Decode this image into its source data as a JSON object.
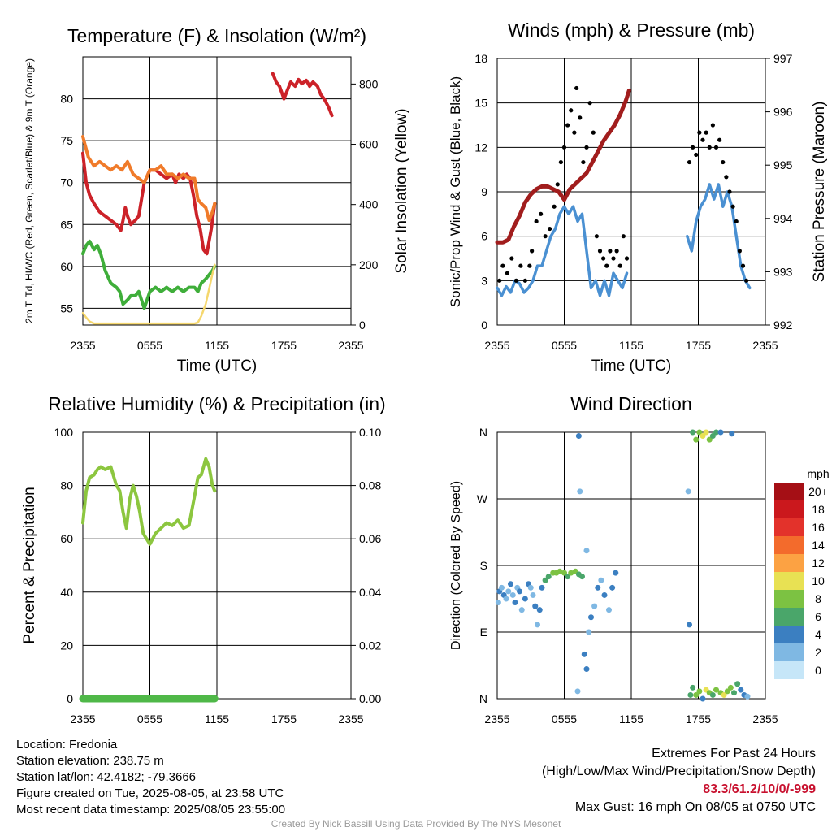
{
  "time_ticks": [
    "2355",
    "0555",
    "1155",
    "1755",
    "2355"
  ],
  "chart_data": [
    {
      "id": "temp",
      "type": "line",
      "title": "Temperature (F) & Insolation (W/m²)",
      "xlabel": "Time (UTC)",
      "ylabel": "2m T, Td, HI/WC (Red, Green, Scarlet/Blue) & 9m T (Orange)",
      "ylabel_right": "Solar Insolation (Yellow)",
      "x_unit": "hours since 2355 UTC",
      "xlim": [
        0,
        24
      ],
      "ylim": [
        53,
        85
      ],
      "yticks": [
        55,
        60,
        65,
        70,
        75,
        80
      ],
      "ylim_right": [
        0,
        890
      ],
      "yticks_right": [
        0,
        200,
        400,
        600,
        800
      ],
      "series": [
        {
          "name": "2m T",
          "color": "#cc2229",
          "axis": "left",
          "x": [
            0,
            0.3,
            0.6,
            1,
            1.5,
            2,
            2.5,
            3,
            3.4,
            3.6,
            3.8,
            4,
            4.3,
            4.7,
            5,
            5.5,
            6,
            6.5,
            7,
            7.5,
            8,
            8.3,
            8.6,
            9,
            9.3,
            9.6,
            9.9,
            10.2,
            10.5,
            10.8,
            11.1,
            11.5,
            11.8
          ],
          "y": [
            73.5,
            70,
            68.5,
            67.5,
            66.5,
            66,
            65.5,
            65,
            64.3,
            65.5,
            67,
            66,
            65,
            65.5,
            66,
            70,
            71.5,
            71.5,
            71,
            70.5,
            71,
            70,
            71,
            70.5,
            71,
            70.5,
            68.5,
            66,
            64.5,
            62,
            61.5,
            64.5,
            67.5
          ]
        },
        {
          "name": "2m T (evening)",
          "color": "#cc2229",
          "axis": "left",
          "x": [
            17,
            17.3,
            17.6,
            18,
            18.3,
            18.6,
            19,
            19.3,
            19.6,
            20,
            20.3,
            20.6,
            21,
            21.3,
            21.6,
            22,
            22.3
          ],
          "y": [
            83,
            82,
            81.5,
            80,
            81,
            82,
            81.5,
            82.3,
            81.8,
            82.2,
            81.5,
            82,
            81.5,
            80.5,
            80,
            79,
            78
          ]
        },
        {
          "name": "9m T",
          "color": "#f07b2a",
          "axis": "left",
          "x": [
            0,
            0.5,
            1,
            1.5,
            2,
            2.5,
            3,
            3.5,
            4,
            4.5,
            5,
            5.5,
            6,
            6.5,
            7,
            7.5,
            8,
            8.5,
            9,
            9.5,
            10,
            10.3,
            10.6,
            11,
            11.3,
            11.6,
            11.8
          ],
          "y": [
            75.5,
            73,
            72,
            72.5,
            72,
            71.5,
            72,
            71.5,
            72.5,
            71,
            70.5,
            70,
            71.5,
            71.5,
            72,
            71,
            71,
            70.5,
            71,
            70.5,
            70.5,
            68,
            67.5,
            67,
            65.5,
            66.5,
            67.5
          ]
        },
        {
          "name": "Td",
          "color": "#3fae3a",
          "axis": "left",
          "x": [
            0,
            0.3,
            0.6,
            1,
            1.3,
            1.6,
            2,
            2.5,
            3,
            3.3,
            3.6,
            4,
            4.3,
            4.7,
            5,
            5.5,
            6,
            6.5,
            7,
            7.5,
            8,
            8.5,
            9,
            9.5,
            10,
            10.3,
            10.6,
            11,
            11.3,
            11.6,
            11.8
          ],
          "y": [
            61.5,
            62.5,
            63,
            62,
            62.5,
            61.5,
            59.5,
            58,
            57.5,
            57,
            55.5,
            56,
            56.5,
            56.5,
            57,
            55,
            57,
            57.5,
            57,
            57.5,
            57,
            57.5,
            57,
            57.5,
            57.5,
            57,
            58,
            58.5,
            59,
            59.5,
            60
          ]
        },
        {
          "name": "Solar Insolation",
          "color": "#f5d76e",
          "axis": "right",
          "x": [
            0,
            0.3,
            0.6,
            1,
            2,
            4,
            6,
            8,
            10,
            10.3,
            10.6,
            11,
            11.3,
            11.6,
            11.8
          ],
          "y": [
            40,
            25,
            12,
            5,
            5,
            5,
            5,
            5,
            5,
            8,
            30,
            70,
            120,
            170,
            200
          ]
        }
      ]
    },
    {
      "id": "wind",
      "type": "line",
      "title": "Winds (mph) & Pressure (mb)",
      "xlabel": "Time (UTC)",
      "ylabel": "Sonic/Prop Wind & Gust (Blue, Black)",
      "ylabel_right": "Station Pressure (Maroon)",
      "x_unit": "hours since 2355 UTC",
      "xlim": [
        0,
        24
      ],
      "ylim": [
        0,
        18
      ],
      "yticks": [
        0,
        3,
        6,
        9,
        12,
        15,
        18
      ],
      "ylim_right": [
        992,
        997
      ],
      "yticks_right": [
        992,
        993,
        994,
        995,
        996,
        997
      ],
      "series": [
        {
          "name": "Station Pressure",
          "color": "#a11d1d",
          "axis": "right",
          "x": [
            0,
            0.5,
            1,
            1.5,
            2,
            2.5,
            3,
            3.5,
            4,
            4.5,
            5,
            5.5,
            6,
            6.5,
            7,
            7.5,
            8,
            8.5,
            9,
            9.5,
            10,
            10.5,
            11,
            11.5,
            11.8
          ],
          "y": [
            993.55,
            993.55,
            993.6,
            993.85,
            994.05,
            994.3,
            994.45,
            994.55,
            994.6,
            994.6,
            994.55,
            994.5,
            994.35,
            994.55,
            994.65,
            994.75,
            994.85,
            995.05,
            995.25,
            995.45,
            995.6,
            995.75,
            995.95,
            996.2,
            996.4
          ]
        },
        {
          "name": "Wind Speed",
          "color": "#4a90d2",
          "axis": "left",
          "x": [
            0,
            0.4,
            0.8,
            1.2,
            1.6,
            2,
            2.4,
            2.8,
            3.2,
            3.6,
            4,
            4.4,
            4.8,
            5.2,
            5.6,
            6,
            6.4,
            6.8,
            7.2,
            7.6,
            8,
            8.4,
            8.8,
            9.2,
            9.6,
            10,
            10.4,
            10.8,
            11.2,
            11.6
          ],
          "y": [
            2.5,
            2,
            2.6,
            2.2,
            3,
            2.8,
            2.2,
            2.5,
            3,
            4,
            4,
            5,
            6,
            6.5,
            7.5,
            8,
            7.5,
            8,
            7,
            7.5,
            5,
            2.5,
            3,
            2,
            3,
            2,
            3.5,
            3,
            2.5,
            3.5
          ]
        },
        {
          "name": "Wind Speed (evening)",
          "color": "#4a90d2",
          "axis": "left",
          "x": [
            17,
            17.4,
            17.8,
            18.2,
            18.6,
            19,
            19.4,
            19.8,
            20.2,
            20.6,
            21,
            21.4,
            21.8,
            22.2,
            22.6
          ],
          "y": [
            6,
            5,
            7,
            8,
            8.5,
            9.5,
            8.5,
            9.5,
            8,
            9,
            8,
            6,
            4,
            3,
            2.5
          ]
        },
        {
          "name": "Gust",
          "color": "#000000",
          "axis": "left",
          "type": "scatter",
          "x": [
            0.2,
            0.5,
            0.9,
            1.3,
            1.7,
            2.1,
            2.5,
            2.9,
            3.1,
            3.5,
            3.9,
            4.3,
            4.7,
            5.1,
            5.4,
            5.7,
            6,
            6.3,
            6.6,
            6.9,
            7.1,
            7.4,
            7.7,
            8,
            8.3,
            8.6,
            8.9,
            9.2,
            9.5,
            9.8,
            10.1,
            10.4,
            10.7,
            11,
            11.3,
            11.6,
            17.2,
            17.5,
            17.8,
            18.1,
            18.4,
            18.7,
            19,
            19.3,
            19.6,
            19.9,
            20.2,
            20.5,
            20.8,
            21.1,
            21.4,
            21.7,
            22,
            22.3
          ],
          "y": [
            3,
            4,
            3.5,
            4.5,
            3,
            4,
            3,
            4,
            5,
            7,
            7.5,
            6,
            6.5,
            8,
            9.5,
            11,
            12,
            13.5,
            14.5,
            13,
            16,
            14,
            11,
            12,
            15,
            13,
            6,
            5,
            4.5,
            4,
            5,
            4.5,
            5,
            4,
            6,
            4.5,
            11,
            12,
            11.5,
            13,
            12.5,
            13,
            12,
            13.5,
            12,
            12.5,
            11,
            10,
            9,
            8,
            7,
            5,
            4,
            3
          ]
        }
      ]
    },
    {
      "id": "rh",
      "type": "line",
      "title": "Relative Humidity (%) & Precipitation (in)",
      "xlabel": "",
      "ylabel": "Percent & Precipitation",
      "x_unit": "hours since 2355 UTC",
      "xlim": [
        0,
        24
      ],
      "ylim": [
        0,
        100
      ],
      "yticks": [
        0,
        20,
        40,
        60,
        80,
        100
      ],
      "ylim_right": [
        0,
        0.1
      ],
      "yticks_right": [
        "0.00",
        "0.02",
        "0.04",
        "0.06",
        "0.08",
        "0.10"
      ],
      "series": [
        {
          "name": "Relative Humidity",
          "color": "#8cc63f",
          "axis": "left",
          "x": [
            0,
            0.3,
            0.6,
            1,
            1.3,
            1.6,
            2,
            2.5,
            3,
            3.3,
            3.6,
            3.9,
            4.2,
            4.5,
            4.8,
            5.1,
            5.4,
            5.7,
            6,
            6.5,
            7,
            7.5,
            8,
            8.5,
            9,
            9.5,
            10,
            10.3,
            10.6,
            11,
            11.3,
            11.6,
            11.8
          ],
          "y": [
            66,
            78,
            83,
            84,
            86,
            87,
            86,
            87,
            80,
            78,
            70,
            64,
            75,
            80,
            76,
            70,
            62,
            60,
            58,
            62,
            64,
            66,
            65,
            67,
            64,
            65,
            76,
            83,
            84,
            90,
            87,
            80,
            78
          ]
        },
        {
          "name": "Precipitation",
          "color": "#4fb848",
          "axis": "right",
          "x": [
            0,
            11.8
          ],
          "y": [
            0,
            0
          ]
        }
      ]
    },
    {
      "id": "dir",
      "type": "scatter",
      "title": "Wind Direction",
      "xlabel": "",
      "ylabel": "Direction (Colored By Speed)",
      "x_unit": "hours since 2355 UTC",
      "xlim": [
        0,
        24
      ],
      "ylim": [
        0,
        360
      ],
      "ytick_labels": [
        "N",
        "E",
        "S",
        "W",
        "N"
      ],
      "yticks": [
        0,
        90,
        180,
        270,
        360
      ],
      "colorbar": {
        "title": "mph",
        "labels": [
          "20+",
          "18",
          "16",
          "14",
          "12",
          "10",
          "8",
          "6",
          "4",
          "2",
          "0"
        ],
        "colors": [
          "#a50f15",
          "#cb181d",
          "#e3322b",
          "#f36b2c",
          "#fca243",
          "#e8e153",
          "#7cc242",
          "#4aa66a",
          "#3b7fc1",
          "#7fb8e3",
          "#c6e6f8"
        ]
      },
      "points": [
        [
          0.1,
          130,
          2
        ],
        [
          0.2,
          145,
          3
        ],
        [
          0.4,
          150,
          2
        ],
        [
          0.6,
          140,
          3
        ],
        [
          0.8,
          135,
          2
        ],
        [
          1,
          145,
          2
        ],
        [
          1.2,
          155,
          3
        ],
        [
          1.4,
          140,
          2
        ],
        [
          1.6,
          130,
          3
        ],
        [
          1.8,
          150,
          2
        ],
        [
          2,
          145,
          3
        ],
        [
          2.2,
          120,
          2
        ],
        [
          2.5,
          135,
          4
        ],
        [
          2.8,
          155,
          3
        ],
        [
          3,
          150,
          2
        ],
        [
          3.2,
          140,
          2
        ],
        [
          3.4,
          125,
          3
        ],
        [
          3.6,
          100,
          2
        ],
        [
          3.8,
          120,
          3
        ],
        [
          4,
          150,
          4
        ],
        [
          4.3,
          160,
          5
        ],
        [
          4.6,
          165,
          6
        ],
        [
          5,
          170,
          7
        ],
        [
          5.3,
          170,
          8
        ],
        [
          5.6,
          172,
          8
        ],
        [
          6,
          170,
          7
        ],
        [
          6.3,
          165,
          6
        ],
        [
          6.6,
          170,
          8
        ],
        [
          7,
          172,
          7
        ],
        [
          7.3,
          168,
          6
        ],
        [
          7.6,
          165,
          5
        ],
        [
          7.8,
          60,
          4
        ],
        [
          8,
          40,
          3
        ],
        [
          8.2,
          90,
          2
        ],
        [
          8.4,
          110,
          3
        ],
        [
          8.7,
          125,
          2
        ],
        [
          9,
          150,
          3
        ],
        [
          9.3,
          160,
          2
        ],
        [
          9.6,
          140,
          3
        ],
        [
          10,
          120,
          2
        ],
        [
          10.3,
          150,
          3
        ],
        [
          10.6,
          170,
          4
        ],
        [
          7.2,
          10,
          2
        ],
        [
          7.3,
          355,
          3
        ],
        [
          7.4,
          280,
          2
        ],
        [
          8,
          200,
          1
        ],
        [
          17.1,
          280,
          2
        ],
        [
          17.2,
          100,
          4
        ],
        [
          17.3,
          5,
          5
        ],
        [
          17.5,
          360,
          6
        ],
        [
          17.8,
          350,
          8
        ],
        [
          18.1,
          360,
          7
        ],
        [
          18.4,
          355,
          9
        ],
        [
          18.7,
          360,
          10
        ],
        [
          19,
          350,
          8
        ],
        [
          19.3,
          355,
          6
        ],
        [
          19.6,
          360,
          5
        ],
        [
          20,
          360,
          4
        ],
        [
          21,
          358,
          3
        ],
        [
          17.5,
          15,
          6
        ],
        [
          17.8,
          5,
          8
        ],
        [
          18.1,
          10,
          7
        ],
        [
          18.4,
          0,
          4
        ],
        [
          18.7,
          12,
          9
        ],
        [
          19,
          8,
          8
        ],
        [
          19.3,
          5,
          6
        ],
        [
          19.6,
          12,
          8
        ],
        [
          20,
          8,
          7
        ],
        [
          20.3,
          5,
          9
        ],
        [
          20.6,
          10,
          8
        ],
        [
          20.9,
          15,
          7
        ],
        [
          21.2,
          8,
          6
        ],
        [
          21.5,
          20,
          5
        ],
        [
          21.8,
          12,
          4
        ],
        [
          22.1,
          5,
          3
        ],
        [
          22.4,
          3,
          2
        ]
      ]
    }
  ],
  "info": {
    "location": "Location: Fredonia",
    "elevation": "Station elevation: 238.75 m",
    "latlon": "Station lat/lon: 42.4182; -79.3666",
    "created": "Figure created on Tue, 2025-08-05, at 23:58 UTC",
    "recent": "Most recent data timestamp: 2025/08/05 23:55:00"
  },
  "extremes": {
    "title": "Extremes For Past 24 Hours",
    "subtitle": "(High/Low/Max Wind/Precipitation/Snow Depth)",
    "values": "83.3/61.2/10/0/-999",
    "gust": "Max Gust: 16 mph On 08/05 at 0750 UTC"
  },
  "credit": "Created By Nick Bassill Using Data Provided By The NYS Mesonet"
}
